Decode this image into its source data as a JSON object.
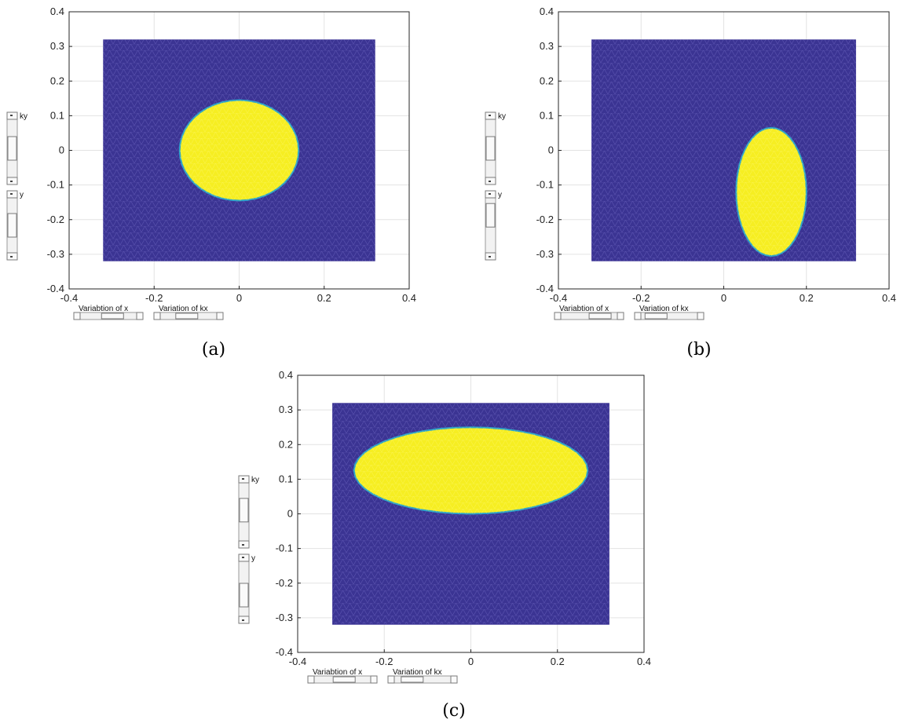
{
  "colors": {
    "background_field": "#3b3493",
    "mesh_line": "#5b54b0",
    "region_fill": "#f6ee22",
    "region_edge": "#2fa5c8"
  },
  "controls": {
    "x_slider_label": "Variabtion of x",
    "kx_slider_label": "Variation of kx",
    "ky_slider_label": "ky",
    "y_slider_label": "y"
  },
  "chart_data": [
    {
      "type": "heatmap",
      "caption": "(a)",
      "xlim": [
        -0.4,
        0.4
      ],
      "ylim": [
        -0.4,
        0.4
      ],
      "x_ticks": [
        "-0.4",
        "-0.2",
        "0",
        "0.2",
        "0.4"
      ],
      "y_ticks": [
        "0.4",
        "0.3",
        "0.2",
        "0.1",
        "0",
        "-0.1",
        "-0.2",
        "-0.3",
        "-0.4"
      ],
      "grid": true,
      "domain": {
        "x": [
          -0.32,
          0.32
        ],
        "y": [
          -0.32,
          0.32
        ]
      },
      "region": {
        "shape": "ellipse",
        "center": [
          0.0,
          0.0
        ],
        "semi_axis_x": 0.14,
        "semi_axis_y": 0.145
      },
      "sliders": {
        "x": 0.62,
        "kx": 0.45,
        "ky": 0.5,
        "y": 0.5
      }
    },
    {
      "type": "heatmap",
      "caption": "(b)",
      "xlim": [
        -0.4,
        0.4
      ],
      "ylim": [
        -0.4,
        0.4
      ],
      "x_ticks": [
        "-0.4",
        "-0.2",
        "0",
        "0.2",
        "0.4"
      ],
      "y_ticks": [
        "0.4",
        "0.3",
        "0.2",
        "0.1",
        "0",
        "-0.1",
        "-0.2",
        "-0.3",
        "-0.4"
      ],
      "grid": true,
      "domain": {
        "x": [
          -0.32,
          0.32
        ],
        "y": [
          -0.32,
          0.32
        ]
      },
      "region": {
        "shape": "ellipse",
        "center": [
          0.115,
          -0.12
        ],
        "semi_axis_x": 0.085,
        "semi_axis_y": 0.185
      },
      "sliders": {
        "x": 0.82,
        "kx": 0.12,
        "ky": 0.5,
        "y": 0.82
      }
    },
    {
      "type": "heatmap",
      "caption": "(c)",
      "xlim": [
        -0.4,
        0.4
      ],
      "ylim": [
        -0.4,
        0.4
      ],
      "x_ticks": [
        "-0.4",
        "-0.2",
        "0",
        "0.2",
        "0.4"
      ],
      "y_ticks": [
        "0.4",
        "0.3",
        "0.2",
        "0.1",
        "0",
        "-0.1",
        "-0.2",
        "-0.3",
        "-0.4"
      ],
      "grid": true,
      "domain": {
        "x": [
          -0.32,
          0.32
        ],
        "y": [
          -0.32,
          0.32
        ]
      },
      "region": {
        "shape": "ellipse",
        "center": [
          0.0,
          0.125
        ],
        "semi_axis_x": 0.27,
        "semi_axis_y": 0.125
      },
      "sliders": {
        "x": 0.55,
        "kx": 0.2,
        "ky": 0.55,
        "y": 0.3
      }
    }
  ]
}
